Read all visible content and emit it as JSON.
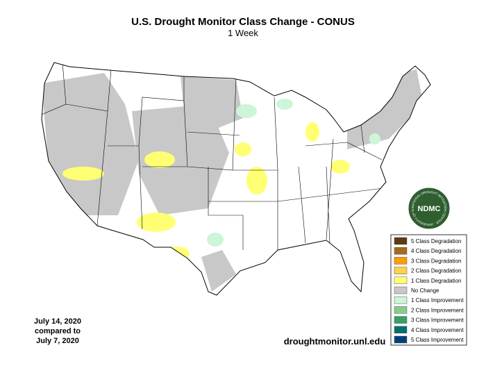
{
  "title": "U.S. Drought Monitor Class Change - CONUS",
  "subtitle": "1 Week",
  "legend": [
    {
      "label": "5 Class Degradation",
      "color": "#5c3a12"
    },
    {
      "label": "4 Class Degradation",
      "color": "#a5691f"
    },
    {
      "label": "3 Class Degradation",
      "color": "#ff9a00"
    },
    {
      "label": "2 Class Degradation",
      "color": "#ffd24a"
    },
    {
      "label": "1 Class Degradation",
      "color": "#ffff73"
    },
    {
      "label": "No Change",
      "color": "#c8c8c8"
    },
    {
      "label": "1 Class Improvement",
      "color": "#cdf5d7"
    },
    {
      "label": "2 Class Improvement",
      "color": "#88cc8a"
    },
    {
      "label": "3 Class Improvement",
      "color": "#36a068"
    },
    {
      "label": "4 Class Improvement",
      "color": "#00706f"
    },
    {
      "label": "5 Class Improvement",
      "color": "#003f78"
    }
  ],
  "date_text": [
    "July 14, 2020",
    "compared to",
    "July 7, 2020"
  ],
  "source": "droughtmonitor.unl.edu",
  "logo": {
    "label": "NDMC",
    "ring_text": "NATIONAL DROUGHT MITIGATION CENTER · UNIVERSITY OF NEBRASKA"
  }
}
